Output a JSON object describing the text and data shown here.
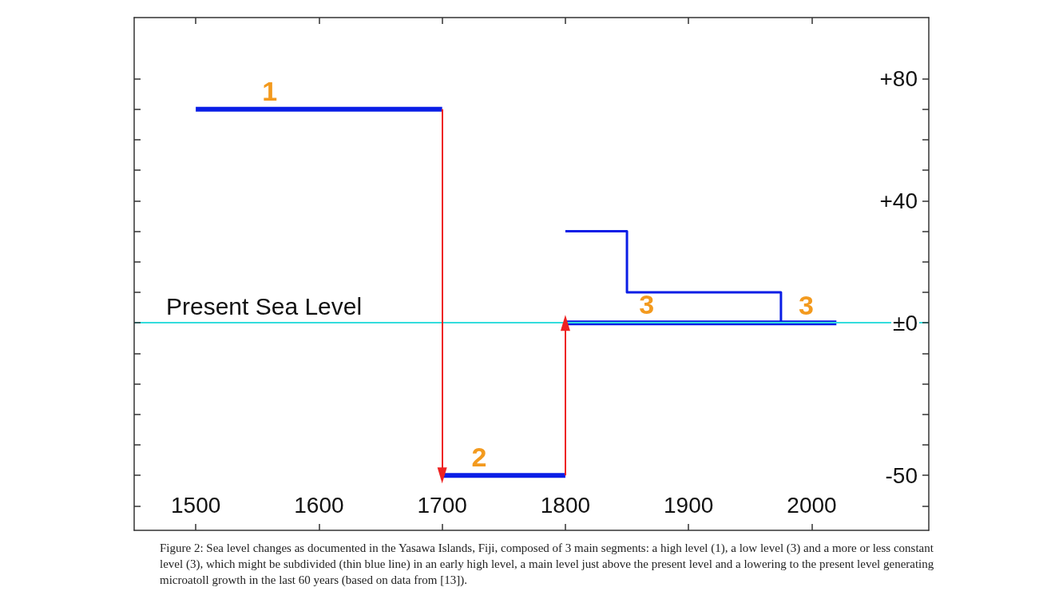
{
  "chart_data": {
    "type": "line",
    "xlim": [
      1450,
      2095
    ],
    "xticks": [
      1500,
      1600,
      1700,
      1800,
      1900,
      2000
    ],
    "ylim": [
      -68,
      100
    ],
    "yticks": [
      {
        "value": -60,
        "label": null
      },
      {
        "value": -50,
        "label": "-50"
      },
      {
        "value": -40,
        "label": null
      },
      {
        "value": -30,
        "label": null
      },
      {
        "value": -20,
        "label": null
      },
      {
        "value": -10,
        "label": null
      },
      {
        "value": 0,
        "label": "±0"
      },
      {
        "value": 10,
        "label": null
      },
      {
        "value": 20,
        "label": null
      },
      {
        "value": 30,
        "label": null
      },
      {
        "value": 40,
        "label": "+40"
      },
      {
        "value": 50,
        "label": null
      },
      {
        "value": 60,
        "label": null
      },
      {
        "value": 70,
        "label": null
      },
      {
        "value": 80,
        "label": "+80"
      }
    ],
    "series": [
      {
        "name": "1",
        "color": "#0a1ee6",
        "x": [
          1500,
          1700
        ],
        "values": [
          70,
          70
        ]
      },
      {
        "name": "2",
        "color": "#0a1ee6",
        "x": [
          1700,
          1800
        ],
        "values": [
          -50,
          -50
        ]
      },
      {
        "name": "3",
        "color": "#0a1ee6",
        "x": [
          1800,
          2020
        ],
        "values": [
          0,
          0
        ]
      },
      {
        "type": "step",
        "name": "3",
        "color": "#0a1ee6",
        "x": [
          1800,
          1850,
          1975
        ],
        "values": [
          30,
          10,
          0
        ]
      },
      {
        "color": "#ee2222",
        "x": [
          1700,
          1700
        ],
        "values": [
          70,
          -50
        ]
      },
      {
        "color": "#ee2222",
        "x": [
          1800,
          1800
        ],
        "values": [
          -50,
          0
        ]
      }
    ],
    "ref_lines": [
      {
        "axis": "y",
        "value": 0,
        "label": "Present Sea Level",
        "color": "#33dddd"
      }
    ],
    "annotations": [
      "Figure 2: Sea level changes as documented in the Yasawa Islands, Fiji, composed of 3 main segments: a high level (1), a low level (3) and a more or less constant level (3), which might be subdivided (thin blue line) in an early high level, a main level just above the present level and a lowering to the present level generating microatoll growth in the last 60 years (based on data from [13])."
    ]
  }
}
